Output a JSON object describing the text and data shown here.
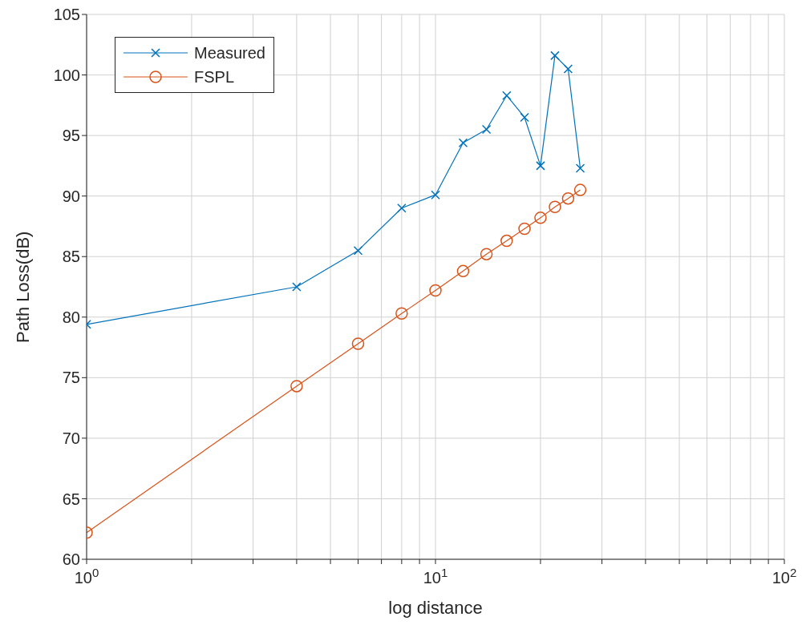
{
  "chart_data": {
    "type": "line",
    "xlabel": "log distance",
    "ylabel": "Path Loss(dB)",
    "x": [
      1,
      4,
      6,
      8,
      10,
      12,
      14,
      16,
      18,
      20,
      22,
      24,
      26
    ],
    "series": [
      {
        "name": "Measured",
        "color": "#0072bd",
        "marker": "cross",
        "values": [
          79.4,
          82.5,
          85.5,
          89.0,
          90.1,
          94.4,
          95.5,
          98.3,
          96.5,
          92.5,
          101.6,
          100.5,
          92.3
        ]
      },
      {
        "name": "FSPL",
        "color": "#d95319",
        "marker": "circle",
        "values": [
          62.2,
          74.3,
          77.8,
          80.3,
          82.2,
          83.8,
          85.2,
          86.3,
          87.3,
          88.2,
          89.1,
          89.8,
          90.5
        ]
      }
    ],
    "log": "x",
    "xlim": [
      1,
      100
    ],
    "xticks": [
      {
        "value": 1,
        "label": "10$^{0}$"
      },
      {
        "value": 2,
        "label": null
      },
      {
        "value": 3,
        "label": null
      },
      {
        "value": 4,
        "label": null
      },
      {
        "value": 5,
        "label": null
      },
      {
        "value": 6,
        "label": null
      },
      {
        "value": 7,
        "label": null
      },
      {
        "value": 8,
        "label": null
      },
      {
        "value": 9,
        "label": null
      },
      {
        "value": 10,
        "label": "10$^{1}$"
      },
      {
        "value": 20,
        "label": null
      },
      {
        "value": 30,
        "label": null
      },
      {
        "value": 40,
        "label": null
      },
      {
        "value": 50,
        "label": null
      },
      {
        "value": 60,
        "label": null
      },
      {
        "value": 70,
        "label": null
      },
      {
        "value": 80,
        "label": null
      },
      {
        "value": 90,
        "label": null
      },
      {
        "value": 100,
        "label": "10$^{2}$"
      }
    ],
    "ylim": [
      60,
      105
    ],
    "yticks": [
      60,
      65,
      70,
      75,
      80,
      85,
      90,
      95,
      100,
      105
    ],
    "grid": true,
    "legend": "top left",
    "line_style": "solid"
  }
}
